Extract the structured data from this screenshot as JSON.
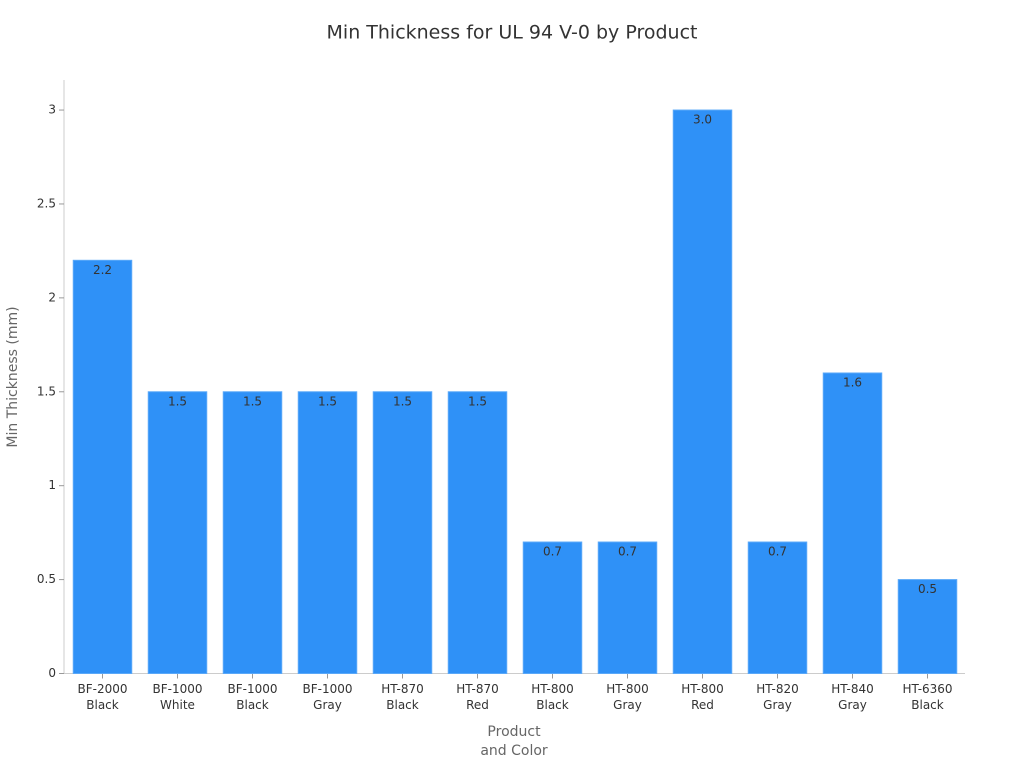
{
  "chart_data": {
    "type": "bar",
    "title": "Min Thickness for UL 94 V-0 by Product",
    "x_label": "Product\nand Color",
    "y_label": "Min Thickness (mm)",
    "categories": [
      "BF-2000\nBlack",
      "BF-1000\nWhite",
      "BF-1000\nBlack",
      "BF-1000\nGray",
      "HT-870\nBlack",
      "HT-870\nRed",
      "HT-800\nBlack",
      "HT-800\nGray",
      "HT-800\nRed",
      "HT-820\nGray",
      "HT-840\nGray",
      "HT-6360\nBlack"
    ],
    "values": [
      2.2,
      1.5,
      1.5,
      1.5,
      1.5,
      1.5,
      0.7,
      0.7,
      3.0,
      0.7,
      1.6,
      0.5
    ],
    "value_labels": [
      "2.2",
      "1.5",
      "1.5",
      "1.5",
      "1.5",
      "1.5",
      "0.7",
      "0.7",
      "3.0",
      "0.7",
      "1.6",
      "0.5"
    ],
    "color": "#2f91f7",
    "ylim": [
      0,
      3.16
    ],
    "yticks": [
      0,
      0.5,
      1,
      1.5,
      2,
      2.5,
      3
    ],
    "grid": false
  }
}
